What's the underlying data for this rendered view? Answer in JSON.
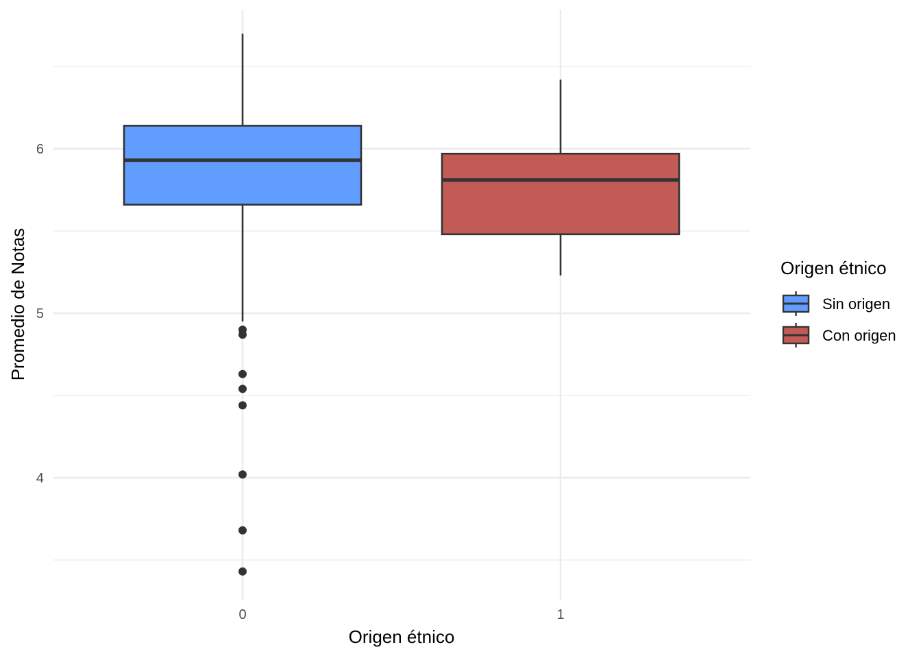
{
  "chart_data": {
    "type": "boxplot",
    "title": "",
    "xlabel": "Origen étnico",
    "ylabel": "Promedio de Notas",
    "ylim": [
      3.35,
      6.85
    ],
    "y_ticks": [
      4,
      5,
      6
    ],
    "y_minor_ticks": [
      3.5,
      4.5,
      5.5,
      6.5
    ],
    "grid": true,
    "legend_position": "right",
    "legend_title": "Origen étnico",
    "categories": [
      "0",
      "1"
    ],
    "series": [
      {
        "name": "Sin origen",
        "category": "0",
        "color": "#619CFF",
        "whisker_low": 4.95,
        "q1": 5.66,
        "median": 5.93,
        "q3": 6.14,
        "whisker_high": 6.7,
        "outliers": [
          4.9,
          4.87,
          4.63,
          4.54,
          4.44,
          4.02,
          3.68,
          3.43
        ]
      },
      {
        "name": "Con origen",
        "category": "1",
        "color": "#C25B56",
        "whisker_low": 5.23,
        "q1": 5.48,
        "median": 5.81,
        "q3": 5.97,
        "whisker_high": 6.42,
        "outliers": []
      }
    ]
  }
}
